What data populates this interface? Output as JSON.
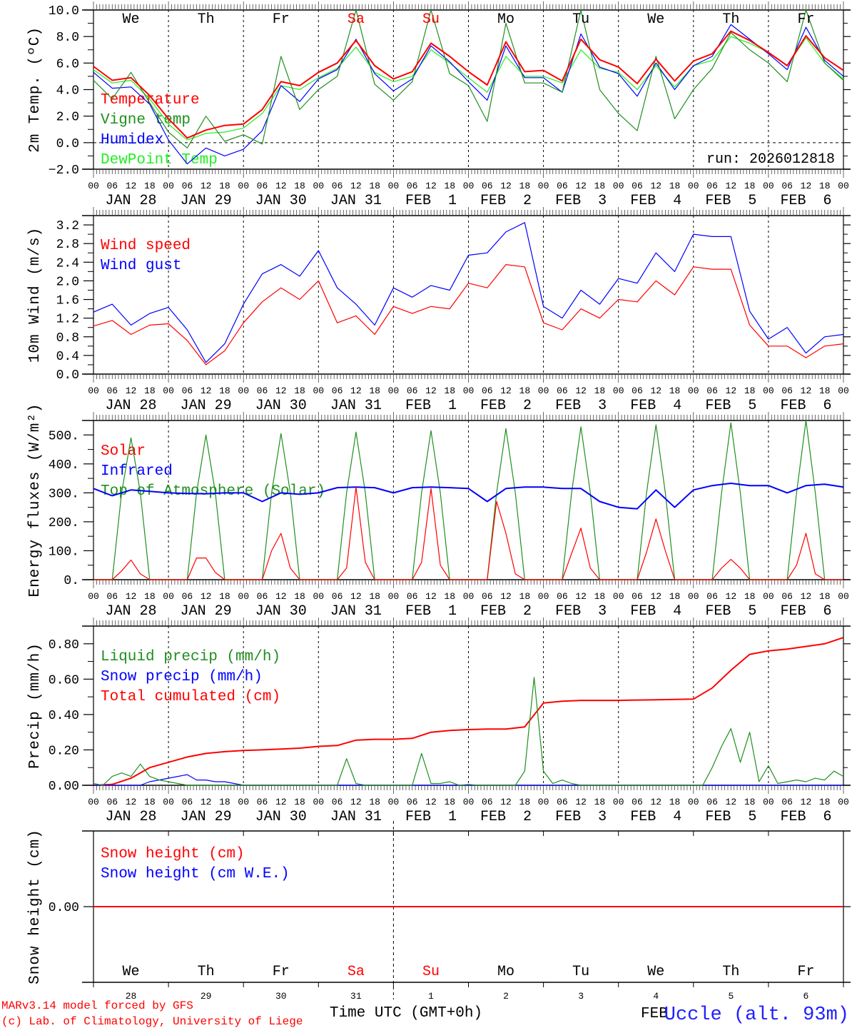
{
  "chart_data": [
    {
      "id": "temperature",
      "type": "line",
      "ylabel": "2m Temp. (ºC)",
      "ylim": [
        -2,
        10
      ],
      "y_tick_values": [
        10,
        8,
        6,
        4,
        2,
        0,
        -2
      ],
      "y_tick_labels": [
        "10.0",
        "8.0",
        "6.0",
        "4.0",
        "2.0",
        "0.0",
        "−2.0"
      ],
      "zero_line": true,
      "x_step_hours": 6,
      "series": [
        {
          "key": "temperature",
          "name": "Temperature",
          "color": "#ff0000",
          "values": [
            5.75,
            4.7,
            4.9,
            3.55,
            1.8,
            0.35,
            0.95,
            1.3,
            1.4,
            2.5,
            4.6,
            4.3,
            5.3,
            6.0,
            7.7,
            5.8,
            4.8,
            5.35,
            7.5,
            6.5,
            5.35,
            4.35,
            7.6,
            5.35,
            5.45,
            4.65,
            7.8,
            6.25,
            5.7,
            4.45,
            6.3,
            4.65,
            6.15,
            6.7,
            8.4,
            7.7,
            6.8,
            5.8,
            8.05,
            6.4,
            5.45
          ]
        },
        {
          "key": "vigne",
          "name": "Vigne temp",
          "color": "#1f8f1f",
          "values": [
            4.7,
            3.3,
            5.3,
            3.0,
            0.8,
            -0.4,
            2.0,
            0.1,
            0.6,
            -0.1,
            6.5,
            2.5,
            4.0,
            5.0,
            10.0,
            4.4,
            3.2,
            4.6,
            10.0,
            5.2,
            4.3,
            1.6,
            9.0,
            4.5,
            4.5,
            3.8,
            10.0,
            4.0,
            2.2,
            0.9,
            6.5,
            1.8,
            4.0,
            5.6,
            8.3,
            7.0,
            6.0,
            4.6,
            10.0,
            6.0,
            4.7
          ]
        },
        {
          "key": "humidex",
          "name": "Humidex",
          "color": "#0000ff",
          "values": [
            5.3,
            4.1,
            4.2,
            2.9,
            0.2,
            -1.6,
            -0.4,
            -1.0,
            -0.5,
            0.9,
            4.3,
            3.1,
            4.8,
            5.5,
            7.8,
            5.2,
            3.9,
            4.8,
            7.3,
            6.1,
            4.6,
            3.2,
            7.3,
            4.9,
            4.9,
            3.8,
            8.2,
            5.7,
            5.2,
            3.5,
            6.0,
            4.0,
            5.8,
            6.5,
            8.9,
            7.8,
            6.7,
            5.5,
            8.7,
            6.2,
            5.0
          ]
        },
        {
          "key": "dewpoint",
          "name": "DewPoint Temp",
          "color": "#22ee22",
          "values": [
            5.5,
            4.5,
            4.7,
            3.3,
            1.4,
            0.2,
            0.7,
            0.8,
            1.1,
            2.2,
            4.3,
            4.0,
            4.9,
            5.6,
            7.2,
            5.3,
            4.6,
            5.0,
            7.0,
            6.0,
            4.9,
            3.8,
            6.5,
            5.0,
            5.0,
            4.5,
            7.0,
            5.6,
            5.3,
            4.0,
            5.8,
            4.2,
            5.8,
            6.2,
            8.0,
            7.5,
            6.8,
            5.8,
            7.9,
            6.0,
            4.8
          ]
        }
      ]
    },
    {
      "id": "wind",
      "type": "line",
      "ylabel": "10m Wind (m/s)",
      "ylim": [
        0,
        3.4
      ],
      "y_tick_values": [
        3.2,
        2.8,
        2.4,
        2.0,
        1.6,
        1.2,
        0.8,
        0.4,
        0.0
      ],
      "y_tick_labels": [
        "3.2",
        "2.8",
        "2.4",
        "2.0",
        "1.6",
        "1.2",
        "0.8",
        "0.4",
        "0.0"
      ],
      "x_step_hours": 6,
      "series": [
        {
          "key": "wind_speed",
          "name": "Wind speed",
          "color": "#ff0000",
          "values": [
            1.03,
            1.15,
            0.85,
            1.05,
            1.08,
            0.72,
            0.2,
            0.5,
            1.1,
            1.55,
            1.85,
            1.6,
            2.0,
            1.1,
            1.25,
            0.85,
            1.45,
            1.3,
            1.45,
            1.4,
            1.95,
            1.85,
            2.35,
            2.3,
            1.1,
            0.95,
            1.4,
            1.2,
            1.6,
            1.55,
            2.0,
            1.7,
            2.3,
            2.25,
            2.25,
            1.05,
            0.6,
            0.6,
            0.35,
            0.6,
            0.65
          ]
        },
        {
          "key": "wind_gust",
          "name": "Wind gust",
          "color": "#0000ff",
          "values": [
            1.33,
            1.5,
            1.05,
            1.3,
            1.43,
            0.95,
            0.25,
            0.65,
            1.5,
            2.15,
            2.35,
            2.1,
            2.65,
            1.85,
            1.5,
            1.05,
            1.85,
            1.65,
            1.9,
            1.8,
            2.55,
            2.6,
            3.05,
            3.25,
            1.45,
            1.2,
            1.8,
            1.5,
            2.05,
            1.95,
            2.6,
            2.2,
            3.0,
            2.95,
            2.95,
            1.35,
            0.75,
            1.0,
            0.45,
            0.8,
            0.85
          ]
        }
      ]
    },
    {
      "id": "energy",
      "type": "line",
      "ylabel": "Energy fluxes (W/m²)",
      "ylim": [
        0,
        550
      ],
      "y_tick_values": [
        500,
        400,
        300,
        200,
        100,
        0
      ],
      "y_tick_labels": [
        "500.",
        "400.",
        "300.",
        "200.",
        "100.",
        "0."
      ],
      "series": [
        {
          "key": "solar",
          "name": "Solar",
          "color": "#ff0000",
          "x_step_hours": 3,
          "values": [
            0,
            0,
            0,
            30,
            68,
            20,
            0,
            0,
            0,
            0,
            0,
            75,
            75,
            25,
            0,
            0,
            0,
            0,
            0,
            100,
            160,
            40,
            0,
            0,
            0,
            0,
            0,
            40,
            320,
            60,
            0,
            0,
            0,
            0,
            0,
            60,
            315,
            50,
            0,
            0,
            0,
            0,
            0,
            270,
            160,
            20,
            0,
            0,
            0,
            0,
            0,
            90,
            178,
            40,
            0,
            0,
            0,
            0,
            0,
            95,
            210,
            100,
            0,
            0,
            0,
            0,
            0,
            40,
            70,
            40,
            0,
            0,
            0,
            0,
            0,
            50,
            160,
            20,
            0,
            0,
            0
          ]
        },
        {
          "key": "infrared",
          "name": "Infrared",
          "color": "#0000ff",
          "x_step_hours": 6,
          "values": [
            315,
            290,
            310,
            305,
            300,
            298,
            297,
            300,
            300,
            270,
            300,
            295,
            300,
            318,
            320,
            318,
            300,
            318,
            320,
            318,
            315,
            270,
            315,
            320,
            320,
            315,
            315,
            270,
            250,
            245,
            310,
            250,
            310,
            325,
            333,
            325,
            325,
            300,
            325,
            330,
            320
          ]
        },
        {
          "key": "toa_solar",
          "name": "Top of Atmosphere (Solar)",
          "color": "#1f8f1f",
          "x_step_hours": 3,
          "values": [
            0,
            0,
            0,
            300,
            490,
            300,
            0,
            0,
            0,
            0,
            0,
            300,
            500,
            300,
            0,
            0,
            0,
            0,
            0,
            300,
            505,
            300,
            0,
            0,
            0,
            0,
            0,
            300,
            510,
            300,
            0,
            0,
            0,
            0,
            0,
            300,
            515,
            300,
            0,
            0,
            0,
            0,
            0,
            300,
            522,
            300,
            0,
            0,
            0,
            0,
            0,
            300,
            528,
            300,
            0,
            0,
            0,
            0,
            0,
            300,
            535,
            300,
            0,
            0,
            0,
            0,
            0,
            300,
            542,
            300,
            0,
            0,
            0,
            0,
            0,
            300,
            550,
            300,
            0,
            0,
            0
          ]
        }
      ]
    },
    {
      "id": "precip",
      "type": "line",
      "ylabel": "Precip (mm/h)",
      "ylim": [
        0,
        0.9
      ],
      "y_tick_values": [
        0.8,
        0.6,
        0.4,
        0.2,
        0.0
      ],
      "y_tick_labels": [
        "0.80",
        "0.60",
        "0.40",
        "0.20",
        "0.00"
      ],
      "series": [
        {
          "key": "liquid",
          "name": "Liquid precip (mm/h)",
          "color": "#1f8f1f",
          "x_step_hours": 3,
          "values": [
            0.01,
            0,
            0.05,
            0.07,
            0.05,
            0.12,
            0.05,
            0.03,
            0.02,
            0.01,
            0,
            0,
            0,
            0,
            0,
            0,
            0,
            0,
            0,
            0,
            0,
            0,
            0,
            0,
            0,
            0,
            0,
            0.15,
            0.01,
            0,
            0,
            0,
            0,
            0,
            0,
            0.18,
            0.01,
            0.01,
            0.02,
            0,
            0.005,
            0,
            0,
            0,
            0,
            0,
            0.08,
            0.61,
            0.08,
            0.01,
            0.03,
            0.01,
            0,
            0,
            0,
            0,
            0,
            0,
            0,
            0,
            0,
            0,
            0,
            0,
            0,
            0,
            0.1,
            0.22,
            0.32,
            0.13,
            0.3,
            0.02,
            0.11,
            0.01,
            0.02,
            0.03,
            0.02,
            0.04,
            0.03,
            0.08,
            0.05
          ]
        },
        {
          "key": "snow",
          "name": "Snow precip (mm/h)",
          "color": "#0000ff",
          "x_step_hours": 3,
          "values": [
            0,
            0,
            0,
            0,
            0,
            0,
            0.02,
            0.03,
            0.04,
            0.05,
            0.06,
            0.03,
            0.03,
            0.02,
            0.02,
            0.01,
            0,
            0,
            0,
            0,
            0,
            0,
            0,
            0,
            0,
            0,
            0,
            0,
            0,
            0,
            0,
            0,
            0,
            0,
            0,
            0,
            0,
            0,
            0,
            0,
            0,
            0,
            0,
            0,
            0,
            0,
            0,
            0,
            0,
            0,
            0,
            0,
            0,
            0,
            0,
            0,
            0,
            0,
            0,
            0,
            0,
            0,
            0,
            0,
            0,
            0,
            0,
            0,
            0,
            0,
            0,
            0,
            0,
            0,
            0,
            0,
            0,
            0,
            0,
            0,
            0
          ]
        },
        {
          "key": "total_cumulated",
          "name": "Total cumulated (cm)",
          "color": "#ff0000",
          "x_step_hours": 6,
          "values": [
            0,
            0.005,
            0.04,
            0.1,
            0.13,
            0.16,
            0.18,
            0.19,
            0.197,
            0.2,
            0.205,
            0.21,
            0.22,
            0.225,
            0.255,
            0.26,
            0.26,
            0.265,
            0.3,
            0.31,
            0.315,
            0.318,
            0.318,
            0.33,
            0.465,
            0.475,
            0.48,
            0.48,
            0.48,
            0.482,
            0.483,
            0.485,
            0.487,
            0.55,
            0.65,
            0.74,
            0.76,
            0.77,
            0.785,
            0.8,
            0.835
          ]
        }
      ]
    },
    {
      "id": "snow_height",
      "type": "line",
      "ylabel": "Snow height (cm)",
      "ylim": [
        -1,
        1
      ],
      "y_tick_values": [
        0.0
      ],
      "y_tick_labels": [
        "0.00"
      ],
      "series": [
        {
          "key": "snow_height_cm",
          "name": "Snow height (cm)",
          "color": "#ff0000",
          "x_step_hours": 240,
          "values": [
            0,
            0
          ]
        },
        {
          "key": "snow_height_we",
          "name": "Snow height (cm W.E.)",
          "color": "#0000ff",
          "x_step_hours": 240,
          "values": [
            0,
            0
          ]
        }
      ]
    }
  ],
  "time_axis": {
    "hours_span": 240,
    "hour_labels": [
      "00",
      "06",
      "12",
      "18"
    ],
    "final_hour_label": "00",
    "dates": [
      "JAN 28",
      "JAN 29",
      "JAN 30",
      "JAN 31",
      "FEB  1",
      "FEB  2",
      "FEB  3",
      "FEB  4",
      "FEB  5",
      "FEB  6"
    ],
    "weekdays": [
      "We",
      "Th",
      "Fr",
      "Sa",
      "Su",
      "Mo",
      "Tu",
      "We",
      "Th",
      "Fr"
    ],
    "weekday_colors": [
      "#000000",
      "#000000",
      "#000000",
      "#ff0000",
      "#ff0000",
      "#000000",
      "#000000",
      "#000000",
      "#000000",
      "#000000"
    ],
    "day_numbers": [
      "28",
      "29",
      "30",
      "31",
      "1",
      "2",
      "3",
      "4",
      "5",
      "6"
    ],
    "month_label": "FEB",
    "xlabel": "Time UTC (GMT+0h)"
  },
  "run_label": "run: 2026012818",
  "footer": {
    "model": "MARv3.14 model forced by GFS",
    "credit": "(c) Lab. of Climatology, University of Liege",
    "station": "Uccle (alt. 93m)",
    "model_color": "#ff0000",
    "station_color": "#2020ff"
  }
}
